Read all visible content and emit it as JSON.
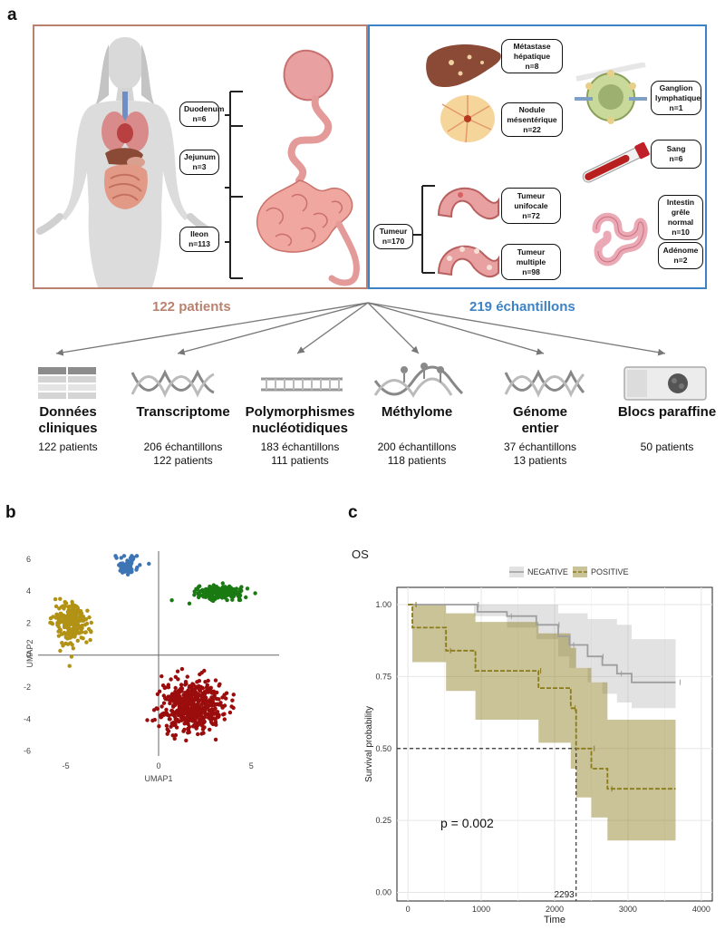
{
  "panel_labels": {
    "a": "a",
    "b": "b",
    "c": "c"
  },
  "panel_a": {
    "left_count": "122 patients",
    "right_count": "219 échantillons",
    "left_color": "#b9826f",
    "right_color": "#3d82c4",
    "segments": [
      {
        "name": "Duodenum",
        "n": "n=6"
      },
      {
        "name": "Jejunum",
        "n": "n=3"
      },
      {
        "name": "Ileon",
        "n": "n=113"
      }
    ],
    "samples": {
      "metastase": {
        "name": "Métastase hépatique",
        "n": "n=8"
      },
      "nodule": {
        "name": "Nodule mésentérique",
        "n": "n=22"
      },
      "ganglion": {
        "name": "Ganglion lymphatique",
        "n": "n=1"
      },
      "sang": {
        "name": "Sang",
        "n": "n=6"
      },
      "tumeur": {
        "name": "Tumeur",
        "n": "n=170"
      },
      "unifocale": {
        "name": "Tumeur unifocale",
        "n": "n=72"
      },
      "multiple": {
        "name": "Tumeur multiple",
        "n": "n=98"
      },
      "intestin": {
        "name": "Intestin grêle normal",
        "n": "n=10"
      },
      "adenome": {
        "name": "Adénome",
        "n": "n=2"
      }
    },
    "omics": [
      {
        "title": "Données cliniques",
        "lines": [
          "122 patients"
        ]
      },
      {
        "title": "Transcriptome",
        "lines": [
          "206 échantillons",
          "122 patients"
        ]
      },
      {
        "title": "Polymorphismes nucléotidiques",
        "lines": [
          "183 échantillons",
          "111 patients"
        ]
      },
      {
        "title": "Méthylome",
        "lines": [
          "200 échantillons",
          "118 patients"
        ]
      },
      {
        "title": "Génome entier",
        "lines": [
          "37 échantillons",
          "13 patients"
        ]
      },
      {
        "title": "Blocs paraffine",
        "lines": [
          "50 patients"
        ]
      }
    ]
  },
  "chart_data": [
    {
      "type": "scatter",
      "xlabel": "UMAP1",
      "ylabel": "UMAP2",
      "xlim": [
        -6.5,
        6.5
      ],
      "ylim": [
        -6.3,
        6.5
      ],
      "xticks": [
        -5,
        0,
        5
      ],
      "yticks": [
        6,
        4,
        2,
        0,
        -2,
        -4,
        -6
      ],
      "series": [
        {
          "color": "#3c74b4",
          "cluster": {
            "cx": -1.7,
            "cy": 5.6,
            "sx": 0.55,
            "sy": 0.5,
            "n": 70
          }
        },
        {
          "color": "#1a7a12",
          "cluster": {
            "cx": 3.3,
            "cy": 3.9,
            "sx": 1.1,
            "sy": 0.35,
            "n": 260
          }
        },
        {
          "color": "#b29214",
          "cluster": {
            "cx": -4.7,
            "cy": 2.0,
            "sx": 0.85,
            "sy": 1.2,
            "n": 240
          }
        },
        {
          "color": "#9b0d0d",
          "cluster": {
            "cx": 1.8,
            "cy": -3.2,
            "sx": 1.5,
            "sy": 1.4,
            "n": 520
          }
        }
      ]
    },
    {
      "type": "line",
      "title": "OS",
      "xlabel": "Time",
      "ylabel": "Survival probability",
      "xlim": [
        -150,
        4150
      ],
      "ylim": [
        -0.03,
        1.06
      ],
      "xticks": [
        0,
        1000,
        2000,
        3000,
        4000
      ],
      "yticks": [
        "1.00",
        "0.75",
        "0.50",
        "0.25",
        "0.00"
      ],
      "annotation": "p = 0.002",
      "median_label": "2293",
      "median_time": 2293,
      "series": [
        {
          "name": "NEGATIVE",
          "color": "#9e9e9e",
          "steps": [
            [
              0,
              1.0
            ],
            [
              900,
              1.0
            ],
            [
              950,
              0.975
            ],
            [
              1300,
              0.975
            ],
            [
              1350,
              0.96
            ],
            [
              1700,
              0.96
            ],
            [
              1750,
              0.93
            ],
            [
              2000,
              0.93
            ],
            [
              2050,
              0.89
            ],
            [
              2150,
              0.89
            ],
            [
              2200,
              0.86
            ],
            [
              2400,
              0.86
            ],
            [
              2450,
              0.82
            ],
            [
              2600,
              0.82
            ],
            [
              2650,
              0.79
            ],
            [
              2800,
              0.79
            ],
            [
              2850,
              0.76
            ],
            [
              3000,
              0.76
            ],
            [
              3050,
              0.73
            ],
            [
              3650,
              0.73
            ]
          ],
          "ci_upper": [
            [
              0,
              1.0
            ],
            [
              1700,
              1.0
            ],
            [
              2050,
              0.97
            ],
            [
              2450,
              0.95
            ],
            [
              2850,
              0.93
            ],
            [
              3050,
              0.88
            ],
            [
              3650,
              0.88
            ]
          ],
          "ci_lower": [
            [
              0,
              1.0
            ],
            [
              900,
              0.96
            ],
            [
              1350,
              0.92
            ],
            [
              1750,
              0.88
            ],
            [
              2050,
              0.82
            ],
            [
              2200,
              0.78
            ],
            [
              2450,
              0.73
            ],
            [
              2650,
              0.69
            ],
            [
              2850,
              0.66
            ],
            [
              3050,
              0.64
            ],
            [
              3650,
              0.64
            ]
          ]
        },
        {
          "name": "POSITIVE",
          "color": "#8a7a1a",
          "steps": [
            [
              0,
              1.0
            ],
            [
              50,
              1.0
            ],
            [
              60,
              0.92
            ],
            [
              500,
              0.92
            ],
            [
              520,
              0.84
            ],
            [
              900,
              0.84
            ],
            [
              920,
              0.77
            ],
            [
              1750,
              0.77
            ],
            [
              1780,
              0.71
            ],
            [
              2200,
              0.71
            ],
            [
              2220,
              0.64
            ],
            [
              2260,
              0.64
            ],
            [
              2293,
              0.5
            ],
            [
              2480,
              0.5
            ],
            [
              2500,
              0.43
            ],
            [
              2700,
              0.43
            ],
            [
              2720,
              0.36
            ],
            [
              3650,
              0.36
            ]
          ],
          "ci_upper": [
            [
              0,
              1.0
            ],
            [
              520,
              0.97
            ],
            [
              920,
              0.94
            ],
            [
              1780,
              0.9
            ],
            [
              2220,
              0.85
            ],
            [
              2293,
              0.78
            ],
            [
              2500,
              0.73
            ],
            [
              2720,
              0.6
            ],
            [
              3650,
              0.6
            ]
          ],
          "ci_lower": [
            [
              0,
              1.0
            ],
            [
              60,
              0.8
            ],
            [
              520,
              0.7
            ],
            [
              920,
              0.6
            ],
            [
              1780,
              0.52
            ],
            [
              2220,
              0.43
            ],
            [
              2293,
              0.33
            ],
            [
              2500,
              0.26
            ],
            [
              2720,
              0.18
            ],
            [
              3650,
              0.18
            ]
          ]
        }
      ],
      "legend_position": "top"
    }
  ]
}
